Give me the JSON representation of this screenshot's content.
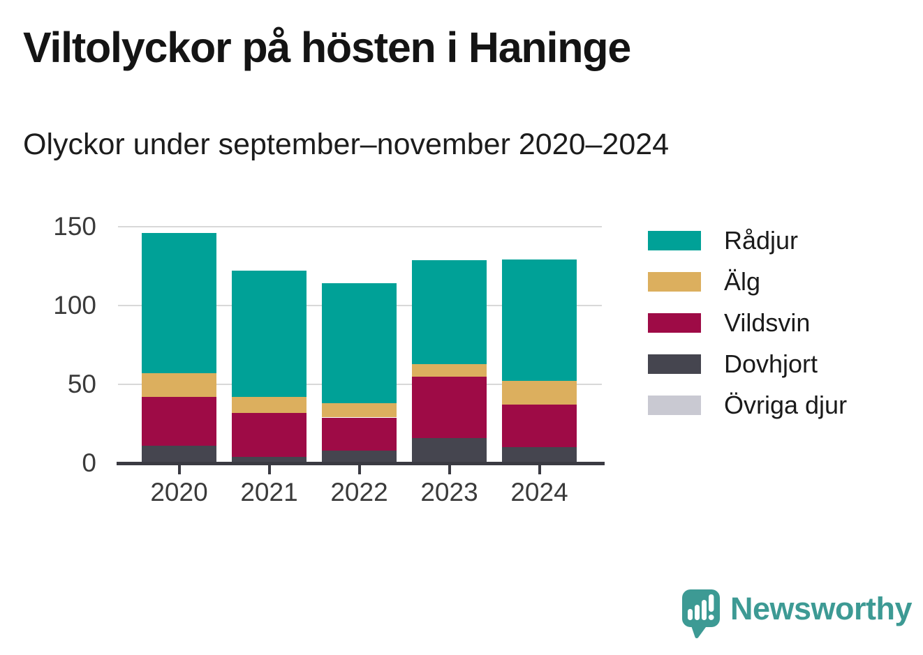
{
  "header": {
    "title": "Viltolyckor på hösten i Haninge",
    "subtitle": "Olyckor under september–november 2020–2024"
  },
  "colors": {
    "radjur": "#00a197",
    "alg": "#dcaf5e",
    "vildsvin": "#9e0b46",
    "dovhjort": "#45454f",
    "ovriga_djur": "#c9c9d2",
    "gridline": "#d8d8d8",
    "axis": "#3a3a42",
    "axis_text": "#3a3a3a",
    "title_text": "#141414",
    "brand_teal": "#3d9a94",
    "background": "#ffffff"
  },
  "chart_data": {
    "type": "bar",
    "stacked": true,
    "title": "Viltolyckor på hösten i Haninge",
    "subtitle": "Olyckor under september–november 2020–2024",
    "categories": [
      "2020",
      "2021",
      "2022",
      "2023",
      "2024"
    ],
    "series": [
      {
        "name": "Rådjur",
        "color": "#00a197",
        "values": [
          89,
          80,
          76,
          66,
          77
        ]
      },
      {
        "name": "Älg",
        "color": "#dcaf5e",
        "values": [
          15,
          10,
          9,
          8,
          15
        ]
      },
      {
        "name": "Vildsvin",
        "color": "#9e0b46",
        "values": [
          31,
          28,
          21,
          39,
          27
        ]
      },
      {
        "name": "Dovhjort",
        "color": "#45454f",
        "values": [
          11,
          4,
          8,
          16,
          10
        ]
      },
      {
        "name": "Övriga djur",
        "color": "#c9c9d2",
        "values": [
          0,
          0,
          0,
          0,
          0
        ]
      }
    ],
    "stack_order_bottom_to_top": [
      "Övriga djur",
      "Dovhjort",
      "Vildsvin",
      "Älg",
      "Rådjur"
    ],
    "xlabel": "",
    "ylabel": "",
    "ylim": [
      0,
      150
    ],
    "yticks": [
      0,
      50,
      100,
      150
    ],
    "grid": true,
    "legend_position": "right"
  },
  "footer": {
    "brand": "Newsworthy",
    "logo_icon": "newsworthy-speech-bubble-chart-icon"
  }
}
